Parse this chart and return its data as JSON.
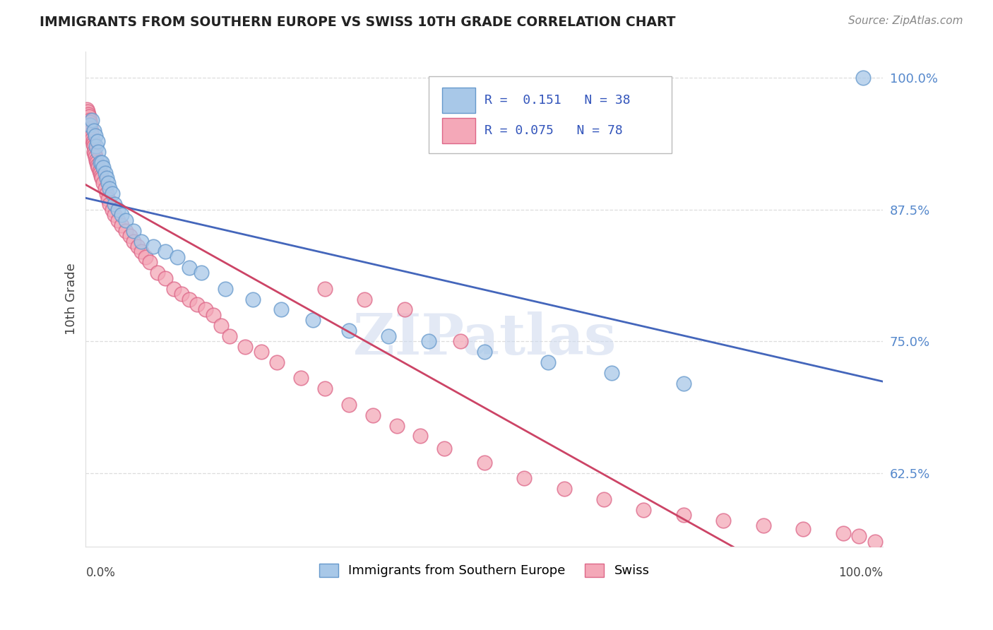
{
  "title": "IMMIGRANTS FROM SOUTHERN EUROPE VS SWISS 10TH GRADE CORRELATION CHART",
  "source": "Source: ZipAtlas.com",
  "ylabel": "10th Grade",
  "right_yticks": [
    "100.0%",
    "87.5%",
    "75.0%",
    "62.5%"
  ],
  "right_ytick_vals": [
    1.0,
    0.875,
    0.75,
    0.625
  ],
  "xlim": [
    0.0,
    1.0
  ],
  "ylim": [
    0.555,
    1.025
  ],
  "blue_R": 0.151,
  "blue_N": 38,
  "pink_R": 0.075,
  "pink_N": 78,
  "blue_color": "#a8c8e8",
  "pink_color": "#f4a8b8",
  "blue_edge_color": "#6699cc",
  "pink_edge_color": "#dd6688",
  "blue_line_color": "#4466bb",
  "pink_line_color": "#cc4466",
  "watermark": "ZIPatlas",
  "blue_x": [
    0.005,
    0.008,
    0.01,
    0.012,
    0.013,
    0.015,
    0.016,
    0.018,
    0.02,
    0.022,
    0.024,
    0.026,
    0.028,
    0.03,
    0.033,
    0.036,
    0.04,
    0.045,
    0.05,
    0.06,
    0.07,
    0.085,
    0.1,
    0.115,
    0.13,
    0.145,
    0.175,
    0.21,
    0.245,
    0.285,
    0.33,
    0.38,
    0.43,
    0.5,
    0.58,
    0.66,
    0.75,
    0.975
  ],
  "blue_y": [
    0.955,
    0.96,
    0.95,
    0.945,
    0.935,
    0.94,
    0.93,
    0.92,
    0.92,
    0.915,
    0.91,
    0.905,
    0.9,
    0.895,
    0.89,
    0.88,
    0.875,
    0.87,
    0.865,
    0.855,
    0.845,
    0.84,
    0.835,
    0.83,
    0.82,
    0.815,
    0.8,
    0.79,
    0.78,
    0.77,
    0.76,
    0.755,
    0.75,
    0.74,
    0.73,
    0.72,
    0.71,
    1.0
  ],
  "pink_x": [
    0.001,
    0.002,
    0.003,
    0.004,
    0.005,
    0.005,
    0.006,
    0.006,
    0.007,
    0.007,
    0.008,
    0.008,
    0.009,
    0.009,
    0.01,
    0.01,
    0.011,
    0.012,
    0.013,
    0.014,
    0.015,
    0.016,
    0.017,
    0.018,
    0.019,
    0.02,
    0.022,
    0.024,
    0.026,
    0.028,
    0.03,
    0.033,
    0.036,
    0.04,
    0.045,
    0.05,
    0.055,
    0.06,
    0.065,
    0.07,
    0.075,
    0.08,
    0.09,
    0.1,
    0.11,
    0.12,
    0.13,
    0.14,
    0.15,
    0.16,
    0.17,
    0.18,
    0.2,
    0.22,
    0.24,
    0.27,
    0.3,
    0.33,
    0.36,
    0.39,
    0.42,
    0.45,
    0.5,
    0.55,
    0.6,
    0.65,
    0.7,
    0.75,
    0.8,
    0.85,
    0.9,
    0.95,
    0.97,
    0.99,
    0.3,
    0.35,
    0.4,
    0.47
  ],
  "pink_y": [
    0.97,
    0.968,
    0.965,
    0.963,
    0.96,
    0.958,
    0.955,
    0.952,
    0.95,
    0.947,
    0.945,
    0.942,
    0.94,
    0.937,
    0.935,
    0.93,
    0.928,
    0.925,
    0.922,
    0.92,
    0.917,
    0.915,
    0.912,
    0.91,
    0.907,
    0.905,
    0.9,
    0.895,
    0.89,
    0.885,
    0.88,
    0.875,
    0.87,
    0.865,
    0.86,
    0.855,
    0.85,
    0.845,
    0.84,
    0.835,
    0.83,
    0.825,
    0.815,
    0.81,
    0.8,
    0.795,
    0.79,
    0.785,
    0.78,
    0.775,
    0.765,
    0.755,
    0.745,
    0.74,
    0.73,
    0.715,
    0.705,
    0.69,
    0.68,
    0.67,
    0.66,
    0.648,
    0.635,
    0.62,
    0.61,
    0.6,
    0.59,
    0.585,
    0.58,
    0.575,
    0.572,
    0.568,
    0.565,
    0.56,
    0.8,
    0.79,
    0.78,
    0.75
  ]
}
